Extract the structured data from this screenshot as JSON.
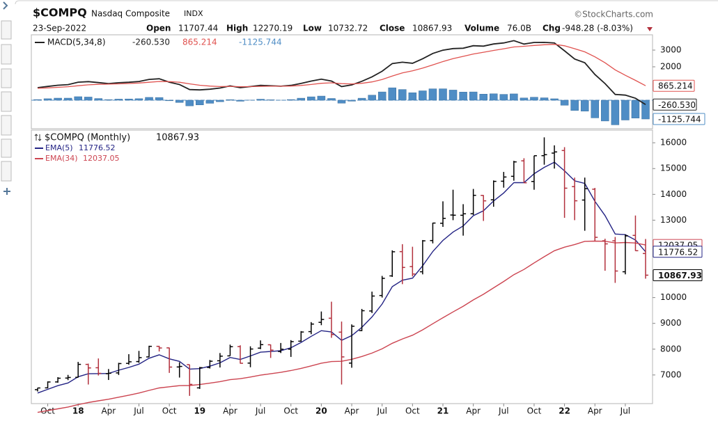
{
  "header": {
    "symbol": "$COMPQ",
    "name": "Nasdaq Composite",
    "exchange": "INDX",
    "source": "©StockCharts.com",
    "date": "23-Sep-2022",
    "open_label": "Open",
    "high_label": "High",
    "low_label": "Low",
    "close_label": "Close",
    "volume_label": "Volume",
    "volume": "76.0B",
    "change_label": "Chg",
    "change": "-948.28 (-8.03%)"
  },
  "chart_data": [
    {
      "type": "macd",
      "ylim": [
        -1708,
        3917
      ],
      "yticks": [
        2000,
        3000
      ],
      "series": [
        {
          "name": "MACD(5,34,8)",
          "color": "#222222",
          "last_label": "-260.530",
          "values": [
            750,
            826,
            898,
            934,
            1080,
            1113,
            1054,
            998,
            1047,
            1077,
            1120,
            1247,
            1285,
            1081,
            939,
            639,
            617,
            660,
            729,
            860,
            749,
            817,
            891,
            862,
            838,
            887,
            1005,
            1145,
            1260,
            1147,
            815,
            919,
            1132,
            1402,
            1735,
            2195,
            2275,
            2211,
            2484,
            2799,
            2995,
            3094,
            3113,
            3263,
            3236,
            3366,
            3431,
            3568,
            3363,
            3459,
            3464,
            3431,
            2958,
            2468,
            2243,
            1538,
            995,
            345,
            305,
            116,
            -260.53
          ]
        },
        {
          "color": "#e0524f",
          "last_label": "865.214",
          "values": [
            711,
            737,
            773,
            809,
            869,
            923,
            952,
            962,
            981,
            1002,
            1028,
            1077,
            1123,
            1114,
            1075,
            978,
            898,
            845,
            819,
            828,
            810,
            812,
            830,
            837,
            837,
            848,
            883,
            941,
            1012,
            1042,
            992,
            976,
            1011,
            1098,
            1239,
            1451,
            1634,
            1762,
            1922,
            2117,
            2312,
            2486,
            2625,
            2767,
            2871,
            2981,
            3081,
            3189,
            3228,
            3279,
            3320,
            3345,
            3259,
            3083,
            2897,
            2596,
            2240,
            1819,
            1492,
            1186,
            865.214
          ]
        },
        {
          "color": "#4f8dc5",
          "last_label": "-1125.744",
          "bars": true,
          "values": [
            39,
            89,
            125,
            125,
            211,
            190,
            102,
            36,
            66,
            75,
            92,
            170,
            162,
            -33,
            -136,
            -339,
            -281,
            -185,
            -90,
            32,
            -61,
            5,
            61,
            25,
            1,
            39,
            122,
            204,
            248,
            105,
            -177,
            -57,
            121,
            304,
            496,
            744,
            641,
            449,
            562,
            682,
            683,
            608,
            488,
            496,
            365,
            385,
            350,
            379,
            135,
            180,
            144,
            86,
            -301,
            -615,
            -654,
            -1058,
            -1245,
            -1474,
            -1187,
            -1070,
            -1125.744
          ]
        }
      ]
    },
    {
      "type": "ohlc",
      "title": "$COMPQ (Monthly)",
      "up_color": "#000000",
      "down_color": "#b2303c",
      "ylim": [
        5890,
        16490
      ],
      "yticks": [
        7000,
        8000,
        9000,
        10000,
        13000,
        14000,
        15000,
        16000
      ],
      "categories": [
        null,
        "Oct",
        null,
        null,
        "18",
        null,
        null,
        "Apr",
        null,
        null,
        "Jul",
        null,
        null,
        "Oct",
        null,
        null,
        "19",
        null,
        null,
        "Apr",
        null,
        null,
        "Jul",
        null,
        null,
        "Oct",
        null,
        null,
        "20",
        null,
        null,
        "Apr",
        null,
        null,
        "Jul",
        null,
        null,
        "Oct",
        null,
        null,
        "21",
        null,
        null,
        "Apr",
        null,
        null,
        "Jul",
        null,
        null,
        "Oct",
        null,
        null,
        "22",
        null,
        null,
        "Apr",
        null,
        null,
        "Jul",
        null,
        null
      ],
      "open": [
        6430,
        6500,
        6730,
        6880,
        6910,
        7410,
        7280,
        7050,
        7080,
        7450,
        7520,
        7700,
        8110,
        8050,
        7310,
        7400,
        6500,
        7290,
        7550,
        7740,
        8100,
        7460,
        8040,
        8170,
        7910,
        8000,
        8310,
        8680,
        9040,
        9200,
        8660,
        7460,
        8720,
        9480,
        10080,
        10840,
        11780,
        11200,
        11000,
        12210,
        12880,
        13200,
        13190,
        13250,
        13960,
        13790,
        14510,
        14700,
        15300,
        14500,
        15500,
        15600,
        15700,
        14300,
        13780,
        14200,
        12200,
        12200,
        11000,
        12410,
        11707.44
      ],
      "high": [
        6500,
        6750,
        6915,
        7003,
        7506,
        7440,
        7640,
        7230,
        7470,
        7806,
        7933,
        8133,
        8130,
        8060,
        7490,
        7400,
        7310,
        7580,
        7850,
        8176,
        8150,
        8110,
        8340,
        8180,
        8240,
        8350,
        8700,
        9050,
        9460,
        9840,
        9070,
        8960,
        9560,
        10230,
        10840,
        11830,
        12070,
        11970,
        12230,
        12900,
        13730,
        14180,
        13620,
        14210,
        13970,
        14540,
        14870,
        15300,
        15400,
        15500,
        16210,
        15900,
        15830,
        14650,
        14650,
        14250,
        12280,
        12350,
        12450,
        13180,
        12270.19
      ],
      "low": [
        6360,
        6480,
        6700,
        6800,
        6900,
        6630,
        6980,
        6806,
        7000,
        7400,
        7470,
        7690,
        7910,
        7080,
        6900,
        6190,
        6460,
        7250,
        7290,
        7740,
        7440,
        7300,
        8000,
        7660,
        7850,
        7700,
        8290,
        8580,
        8930,
        8440,
        6630,
        7280,
        8700,
        9400,
        10000,
        10800,
        10520,
        10820,
        10900,
        12100,
        12740,
        13000,
        12400,
        13200,
        12970,
        13520,
        14260,
        14530,
        14450,
        14180,
        15150,
        15000,
        13090,
        13000,
        12590,
        12200,
        11040,
        10570,
        10900,
        11810,
        10732.72
      ],
      "close": [
        6496,
        6728,
        6874,
        6903,
        7411,
        7273,
        7063,
        7066,
        7442,
        7510,
        7672,
        8110,
        8046,
        7306,
        7331,
        6635,
        7282,
        7533,
        7729,
        8095,
        7453,
        8006,
        8175,
        7963,
        7999,
        8292,
        8665,
        8973,
        9151,
        8567,
        7700,
        8890,
        9490,
        10059,
        10745,
        11775,
        11168,
        10912,
        12199,
        12888,
        13071,
        13192,
        13247,
        13963,
        13749,
        14504,
        14673,
        15259,
        14449,
        15498,
        15538,
        15645,
        14240,
        13751,
        14221,
        12335,
        12081,
        11029,
        12391,
        11816,
        10867.93
      ],
      "series": [
        {
          "name": "EMA(5)",
          "color": "#232384",
          "values": [
            6300,
            6443,
            6587,
            6692,
            6932,
            7046,
            7052,
            7057,
            7185,
            7293,
            7419,
            7649,
            7781,
            7623,
            7526,
            7229,
            7247,
            7342,
            7471,
            7679,
            7604,
            7738,
            7884,
            7910,
            7940,
            8057,
            8260,
            8498,
            8716,
            8666,
            8344,
            8526,
            8847,
            9251,
            9749,
            10424,
            10672,
            10752,
            11234,
            11785,
            12214,
            12540,
            12776,
            13172,
            13364,
            13744,
            14054,
            14456,
            14454,
            14802,
            15047,
            15246,
            14911,
            14524,
            14423,
            13727,
            13178,
            12462,
            12438,
            12231,
            11776.52
          ]
        },
        {
          "name": "EMA(34)",
          "color": "#cc4450",
          "values": [
            5550,
            5617,
            5689,
            5758,
            5852,
            5933,
            5998,
            6059,
            6138,
            6216,
            6299,
            6402,
            6496,
            6542,
            6587,
            6590,
            6630,
            6682,
            6742,
            6819,
            6855,
            6921,
            6993,
            7048,
            7102,
            7170,
            7255,
            7353,
            7456,
            7519,
            7529,
            7607,
            7715,
            7849,
            8014,
            8229,
            8397,
            8541,
            8750,
            8986,
            9219,
            9446,
            9663,
            9909,
            10128,
            10378,
            10623,
            10888,
            11091,
            11343,
            11583,
            11815,
            11953,
            12056,
            12180,
            12189,
            12183,
            12117,
            12133,
            12115,
            12037.05
          ]
        }
      ]
    }
  ]
}
